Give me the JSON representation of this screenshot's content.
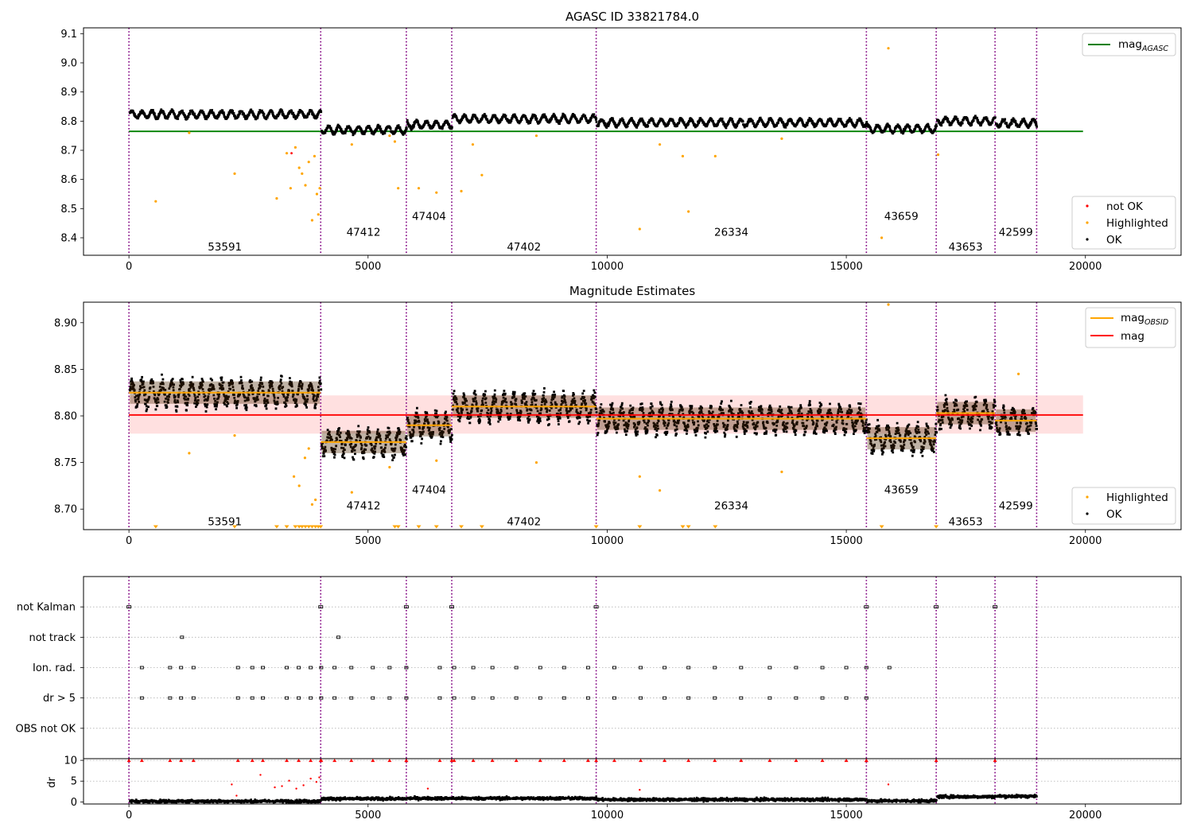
{
  "figure": {
    "titles": {
      "top": "AGASC ID 33821784.0",
      "middle": "Magnitude Estimates"
    },
    "legends": {
      "top_upper": {
        "mag_main": "mag",
        "mag_sub": "AGASC",
        "color": "#008000"
      },
      "top_lower": [
        "not OK",
        "Highlighted",
        "OK"
      ],
      "mid_upper": [
        {
          "main": "mag",
          "sub": "OBSID",
          "color": "#ffa500"
        },
        {
          "main": "mag",
          "sub": "",
          "color": "#ff0000"
        }
      ],
      "mid_lower": [
        "Highlighted",
        "OK"
      ]
    },
    "x_ticks": [
      "0",
      "5000",
      "10000",
      "15000",
      "20000"
    ],
    "top_y_ticks": [
      "8.4",
      "8.5",
      "8.6",
      "8.7",
      "8.8",
      "8.9",
      "9.0",
      "9.1"
    ],
    "mid_y_ticks": [
      "8.70",
      "8.75",
      "8.80",
      "8.85",
      "8.90"
    ],
    "flag_rows": [
      "not Kalman",
      "not track",
      "Ion. rad.",
      "dr > 5",
      "OBS not OK"
    ],
    "dr_ylabel": "dr",
    "dr_y_ticks": [
      "0",
      "5",
      "10"
    ]
  },
  "chart_data": [
    {
      "type": "scatter",
      "title": "AGASC ID 33821784.0",
      "xlim": [
        -950,
        22000
      ],
      "ylim": [
        8.34,
        9.12
      ],
      "legend_location": "top-right and bottom-right",
      "colors": {
        "not_ok": "#ff0000",
        "highlighted": "#ffa500",
        "ok": "#000000",
        "mag_agasc": "#008000"
      },
      "mag_agasc": 8.765,
      "mag_agasc_x_range": [
        0,
        19950
      ],
      "obsid_boundaries": [
        0,
        4010,
        5800,
        6750,
        9770,
        15420,
        16880,
        18110,
        18980
      ],
      "obsids": [
        {
          "id": "53591",
          "x_start": 0,
          "x_end": 4010,
          "mean_mag": 8.825,
          "label_y": 8.37
        },
        {
          "id": "47412",
          "x_start": 4010,
          "x_end": 5800,
          "mean_mag": 8.772,
          "label_y": 8.42
        },
        {
          "id": "47404",
          "x_start": 5800,
          "x_end": 6750,
          "mean_mag": 8.79,
          "label_y": 8.475
        },
        {
          "id": "47402",
          "x_start": 6750,
          "x_end": 9770,
          "mean_mag": 8.81,
          "label_y": 8.37
        },
        {
          "id": "26334",
          "x_start": 9770,
          "x_end": 15420,
          "mean_mag": 8.797,
          "label_y": 8.42
        },
        {
          "id": "43659",
          "x_start": 15420,
          "x_end": 16880,
          "mean_mag": 8.776,
          "label_y": 8.475
        },
        {
          "id": "43653",
          "x_start": 16880,
          "x_end": 18110,
          "mean_mag": 8.803,
          "label_y": 8.37
        },
        {
          "id": "42599",
          "x_start": 18110,
          "x_end": 18980,
          "mean_mag": 8.795,
          "label_y": 8.42
        }
      ],
      "highlighted_points": [
        [
          560,
          8.525
        ],
        [
          1260,
          8.76
        ],
        [
          2210,
          8.62
        ],
        [
          3090,
          8.535
        ],
        [
          3300,
          8.69
        ],
        [
          3380,
          8.57
        ],
        [
          3480,
          8.71
        ],
        [
          3560,
          8.64
        ],
        [
          3620,
          8.62
        ],
        [
          3690,
          8.58
        ],
        [
          3760,
          8.66
        ],
        [
          3830,
          8.46
        ],
        [
          3880,
          8.68
        ],
        [
          3930,
          8.55
        ],
        [
          3960,
          8.48
        ],
        [
          3990,
          8.57
        ],
        [
          4660,
          8.72
        ],
        [
          5450,
          8.75
        ],
        [
          5560,
          8.73
        ],
        [
          5630,
          8.57
        ],
        [
          6060,
          8.57
        ],
        [
          6430,
          8.555
        ],
        [
          6950,
          8.56
        ],
        [
          7190,
          8.72
        ],
        [
          7380,
          8.615
        ],
        [
          8520,
          8.75
        ],
        [
          10680,
          8.43
        ],
        [
          11100,
          8.72
        ],
        [
          11580,
          8.68
        ],
        [
          11700,
          8.49
        ],
        [
          12260,
          8.68
        ],
        [
          13650,
          8.74
        ],
        [
          15740,
          8.4
        ],
        [
          15880,
          9.05
        ],
        [
          16920,
          8.685
        ]
      ],
      "not_ok_points": [
        [
          3400,
          8.69
        ]
      ]
    },
    {
      "type": "scatter",
      "title": "Magnitude Estimates",
      "xlim": [
        -950,
        22000
      ],
      "ylim": [
        8.678,
        8.922
      ],
      "legend_location": "top-right and bottom-right",
      "mag": 8.801,
      "mag_band": [
        8.781,
        8.822
      ],
      "mag_x_range": [
        0,
        19950
      ],
      "obsid_label_y": [
        8.687,
        8.704,
        8.721,
        8.687,
        8.704,
        8.721,
        8.687,
        8.704
      ],
      "highlighted_points": [
        [
          1260,
          8.76
        ],
        [
          2210,
          8.779
        ],
        [
          3450,
          8.735
        ],
        [
          3560,
          8.725
        ],
        [
          3680,
          8.755
        ],
        [
          3760,
          8.765
        ],
        [
          3830,
          8.705
        ],
        [
          3900,
          8.71
        ],
        [
          4660,
          8.718
        ],
        [
          5450,
          8.745
        ],
        [
          6430,
          8.752
        ],
        [
          8520,
          8.75
        ],
        [
          10680,
          8.735
        ],
        [
          11100,
          8.72
        ],
        [
          13650,
          8.74
        ],
        [
          15880,
          8.92
        ],
        [
          18600,
          8.845
        ]
      ],
      "clipped_low_points_x": [
        560,
        2210,
        3090,
        3300,
        3480,
        3560,
        3620,
        3690,
        3760,
        3830,
        3900,
        3960,
        4010,
        5560,
        5630,
        6060,
        6430,
        6950,
        7380,
        9770,
        10680,
        11580,
        11700,
        12260,
        15740,
        16880
      ]
    },
    {
      "type": "scatter",
      "title": "",
      "xlim": [
        -950,
        22000
      ],
      "categories": [
        "not Kalman",
        "not track",
        "Ion. rad.",
        "dr > 5",
        "OBS not OK"
      ],
      "not_kalman_x": [
        0,
        4010,
        5800,
        6750,
        9770,
        15420,
        16880,
        18110
      ],
      "not_track_x": [
        1110,
        4380
      ],
      "ion_rad_x": [
        270,
        860,
        1090,
        1350,
        2280,
        2580,
        2800,
        3300,
        3550,
        3800,
        4020,
        4300,
        4650,
        5100,
        5450,
        5800,
        6500,
        6800,
        7200,
        7600,
        8100,
        8600,
        9100,
        9600,
        10150,
        10700,
        11200,
        11700,
        12250,
        12800,
        13400,
        13950,
        14500,
        15000,
        15420,
        15900
      ],
      "dr_gt_5_x": [
        270,
        860,
        1090,
        1350,
        2280,
        2580,
        2800,
        3300,
        3550,
        3800,
        4020,
        4300,
        4650,
        5100,
        5450,
        5800,
        6500,
        6800,
        7200,
        7600,
        8100,
        8600,
        9100,
        9600,
        10150,
        10700,
        11200,
        11700,
        12250,
        12800,
        13400,
        13950,
        14500,
        15000,
        15420
      ],
      "obs_not_ok_x": []
    },
    {
      "type": "scatter",
      "title": "",
      "ylabel": "dr",
      "xlim": [
        -950,
        22000
      ],
      "ylim": [
        -0.5,
        10.4
      ],
      "dr_baseline_by_obsid": [
        0.3,
        0.9,
        1.0,
        1.0,
        0.7,
        0.4,
        1.4,
        1.5,
        1.4
      ],
      "dr_clipped_at": 10,
      "dr_outliers": [
        [
          2150,
          4.2
        ],
        [
          2250,
          1.5
        ],
        [
          2750,
          6.5
        ],
        [
          3050,
          3.5
        ],
        [
          3200,
          3.8
        ],
        [
          3350,
          5.1
        ],
        [
          3500,
          3.2
        ],
        [
          3650,
          4.0
        ],
        [
          3800,
          5.6
        ],
        [
          3920,
          4.8
        ],
        [
          3980,
          5.9
        ],
        [
          6250,
          3.2
        ],
        [
          10680,
          2.9
        ],
        [
          15880,
          4.2
        ]
      ]
    }
  ]
}
